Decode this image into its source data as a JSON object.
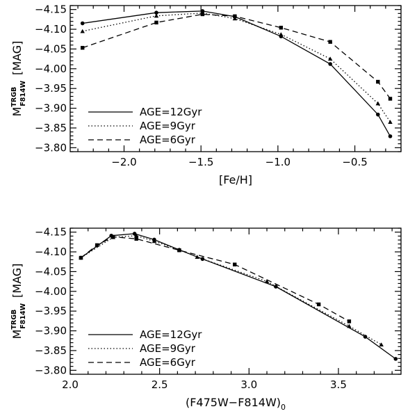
{
  "chart_data": [
    {
      "type": "line",
      "xlabel": "[Fe/H]",
      "ylabel_main": "M",
      "ylabel_sup": "TRGB",
      "ylabel_sub": "F814W",
      "ylabel_unit": "[MAG]",
      "xlim": [
        -2.35,
        -0.2
      ],
      "ylim": [
        -4.16,
        -3.79
      ],
      "y_inverted": true,
      "xticks": [
        -2.0,
        -1.5,
        -1.0,
        -0.5
      ],
      "xtick_labels": [
        "−2.0",
        "−1.5",
        "−1.0",
        "−0.5"
      ],
      "yticks": [
        -4.15,
        -4.1,
        -4.05,
        -4.0,
        -3.95,
        -3.9,
        -3.85,
        -3.8
      ],
      "ytick_labels": [
        "−4.15",
        "−4.10",
        "−4.05",
        "−4.00",
        "−3.95",
        "−3.90",
        "−3.85",
        "−3.80"
      ],
      "legend_position": "bottom-left",
      "grid": false,
      "series": [
        {
          "name": "AGE=12Gyr",
          "line": "solid",
          "marker": "circle",
          "x": [
            -2.27,
            -1.79,
            -1.49,
            -1.28,
            -0.98,
            -0.66,
            -0.35,
            -0.27
          ],
          "y": [
            -4.115,
            -4.142,
            -4.146,
            -4.132,
            -4.082,
            -4.012,
            -3.884,
            -3.829
          ]
        },
        {
          "name": "AGE=9Gyr",
          "line": "dotted",
          "marker": "triangle",
          "x": [
            -2.27,
            -1.79,
            -1.49,
            -1.28,
            -0.98,
            -0.66,
            -0.35,
            -0.27
          ],
          "y": [
            -4.095,
            -4.134,
            -4.141,
            -4.127,
            -4.087,
            -4.025,
            -3.912,
            -3.865
          ]
        },
        {
          "name": "AGE=6Gyr",
          "line": "dashed",
          "marker": "square",
          "x": [
            -2.27,
            -1.79,
            -1.49,
            -1.28,
            -0.98,
            -0.66,
            -0.35,
            -0.27
          ],
          "y": [
            -4.053,
            -4.117,
            -4.138,
            -4.133,
            -4.104,
            -4.068,
            -3.967,
            -3.924
          ]
        }
      ]
    },
    {
      "type": "line",
      "xlabel": "(F475W−F814W)",
      "xlabel_sub": "0",
      "ylabel_main": "M",
      "ylabel_sup": "TRGB",
      "ylabel_sub": "F814W",
      "ylabel_unit": "[MAG]",
      "xlim": [
        2.0,
        3.85
      ],
      "ylim": [
        -4.16,
        -3.79
      ],
      "y_inverted": true,
      "xticks": [
        2.0,
        2.5,
        3.0,
        3.5
      ],
      "xtick_labels": [
        "2.0",
        "2.5",
        "3.0",
        "3.5"
      ],
      "yticks": [
        -4.15,
        -4.1,
        -4.05,
        -4.0,
        -3.95,
        -3.9,
        -3.85,
        -3.8
      ],
      "ytick_labels": [
        "−4.15",
        "−4.10",
        "−4.05",
        "−4.00",
        "−3.95",
        "−3.90",
        "−3.85",
        "−3.80"
      ],
      "legend_position": "bottom-left",
      "grid": false,
      "series": [
        {
          "name": "AGE=12Gyr",
          "line": "solid",
          "marker": "circle",
          "x": [
            2.06,
            2.23,
            2.36,
            2.47,
            2.61,
            2.74,
            3.15,
            3.65,
            3.82
          ],
          "y": [
            -4.085,
            -4.141,
            -4.146,
            -4.131,
            -4.105,
            -4.082,
            -4.012,
            -3.885,
            -3.829
          ]
        },
        {
          "name": "AGE=9Gyr",
          "line": "dotted",
          "marker": "triangle",
          "x": [
            2.06,
            2.24,
            2.37,
            2.47,
            2.61,
            2.71,
            3.1,
            3.56,
            3.74
          ],
          "y": [
            -4.085,
            -4.137,
            -4.141,
            -4.127,
            -4.105,
            -4.087,
            -4.025,
            -3.912,
            -3.865
          ]
        },
        {
          "name": "AGE=6Gyr",
          "line": "dashed",
          "marker": "square",
          "x": [
            2.06,
            2.15,
            2.24,
            2.37,
            2.61,
            2.92,
            3.39,
            3.56
          ],
          "y": [
            -4.085,
            -4.117,
            -4.138,
            -4.133,
            -4.104,
            -4.068,
            -3.967,
            -3.924
          ]
        }
      ]
    }
  ]
}
